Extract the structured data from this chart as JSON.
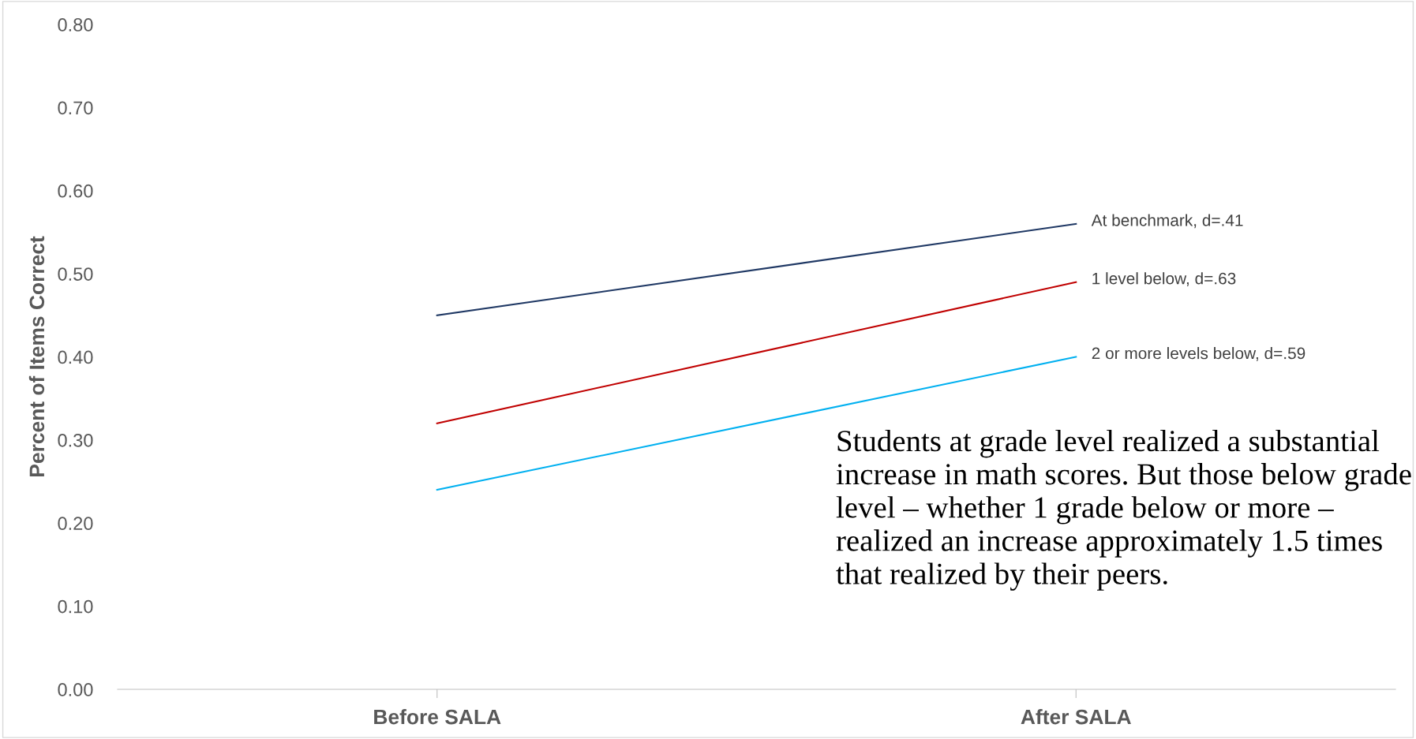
{
  "chart_data": {
    "type": "line",
    "ylabel": "Percent of Items Correct",
    "categories": [
      "Before SALA",
      "After SALA"
    ],
    "series": [
      {
        "name": "At benchmark, d=.41",
        "color": "#1f3864",
        "values": [
          0.45,
          0.56
        ]
      },
      {
        "name": "1 level below, d=.63",
        "color": "#c00000",
        "values": [
          0.32,
          0.49
        ]
      },
      {
        "name": "2 or more levels below, d=.59",
        "color": "#00b0f0",
        "values": [
          0.24,
          0.4
        ]
      }
    ],
    "ylim": [
      0,
      0.8
    ],
    "yticks": [
      {
        "value": 0,
        "label": "0.00"
      },
      {
        "value": 0.1,
        "label": "0.10"
      },
      {
        "value": 0.2,
        "label": "0.20"
      },
      {
        "value": 0.3,
        "label": "0.30"
      },
      {
        "value": 0.4,
        "label": "0.40"
      },
      {
        "value": 0.5,
        "label": "0.50"
      },
      {
        "value": 0.6,
        "label": "0.60"
      },
      {
        "value": 0.7,
        "label": "0.70"
      },
      {
        "value": 0.8,
        "label": "0.80"
      }
    ],
    "grid": false,
    "legend": false,
    "marker": "none",
    "line_style": "solid",
    "annotations": [
      "Students at grade level realized a substantial increase in math scores. But those below grade level – whether 1 grade below or more – realized an increase approximately 1.5 times that realized by their peers."
    ]
  }
}
